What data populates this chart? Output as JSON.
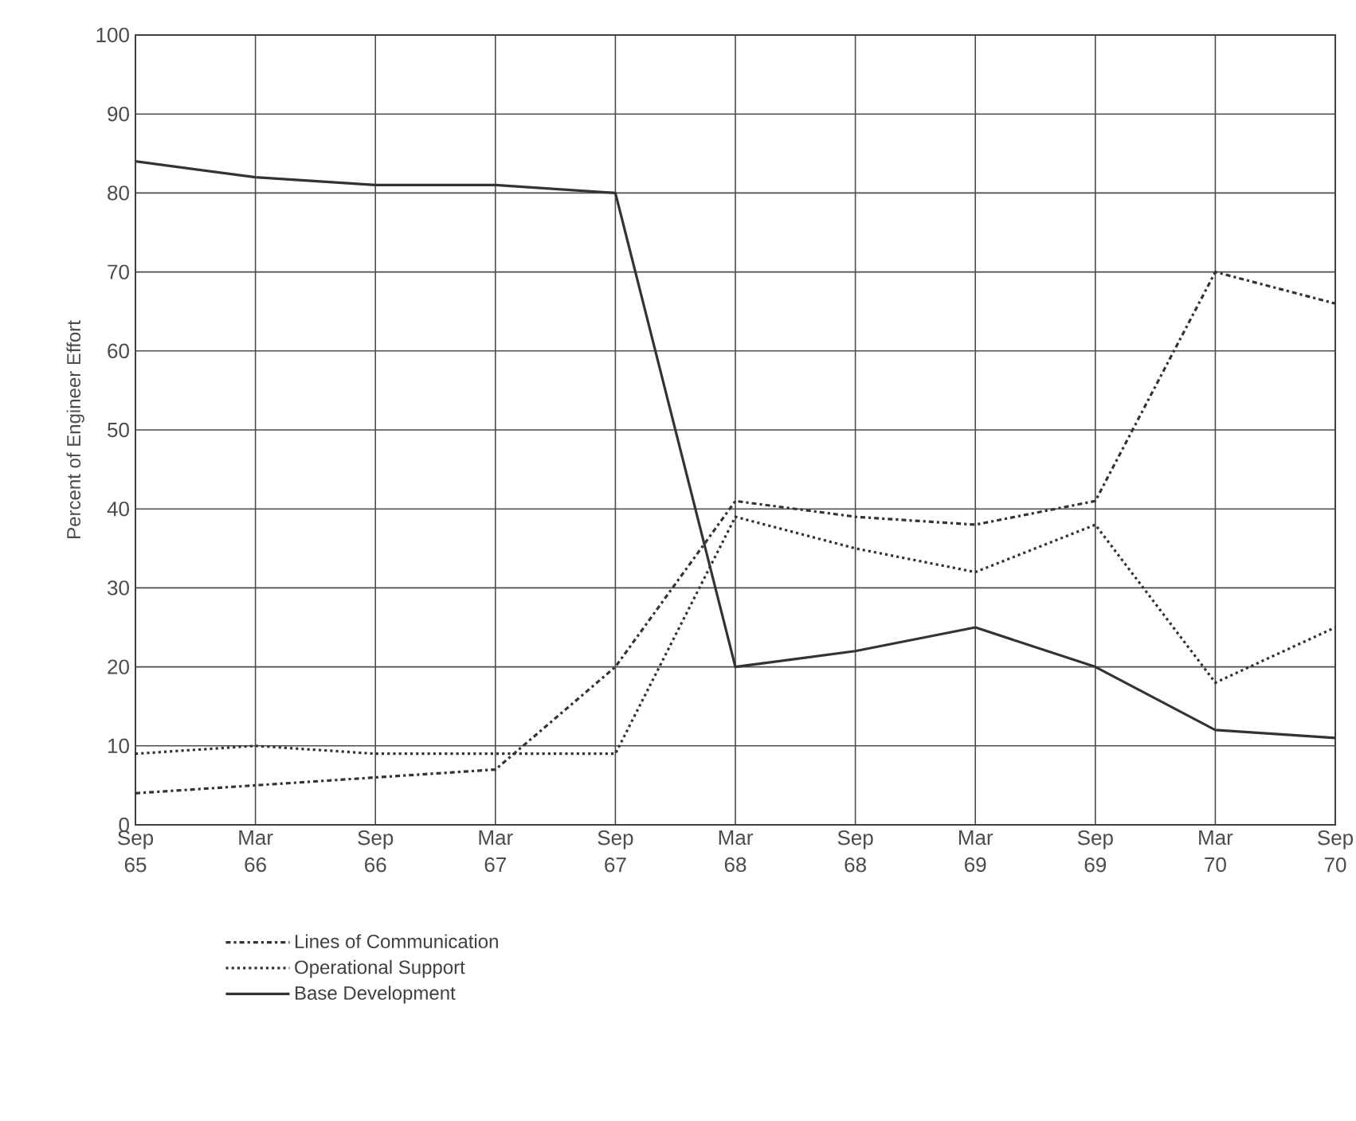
{
  "chart_data": {
    "type": "line",
    "ylabel": "Percent of Engineer Effort",
    "categories": [
      "Sep 65",
      "Mar 66",
      "Sep 66",
      "Mar 67",
      "Sep 67",
      "Mar 68",
      "Sep 68",
      "Mar 69",
      "Sep 69",
      "Mar 70",
      "Sep 70"
    ],
    "ylim": [
      0,
      100
    ],
    "yticks": [
      0,
      10,
      20,
      30,
      40,
      50,
      60,
      70,
      80,
      90,
      100
    ],
    "grid": true,
    "legend": "bottom left",
    "marker": "none",
    "series": [
      {
        "name": "Lines of Communication",
        "color": "#333333",
        "line_style": "dashdot",
        "values": [
          4,
          5,
          6,
          7,
          20,
          41,
          39,
          38,
          41,
          70,
          66
        ]
      },
      {
        "name": "Operational Support",
        "color": "#333333",
        "line_style": "dotted",
        "values": [
          9,
          10,
          9,
          9,
          9,
          39,
          35,
          32,
          38,
          18,
          25
        ]
      },
      {
        "name": "Base Development",
        "color": "#333333",
        "line_style": "solid",
        "values": [
          84,
          82,
          81,
          81,
          80,
          20,
          22,
          25,
          20,
          12,
          11
        ]
      }
    ]
  }
}
